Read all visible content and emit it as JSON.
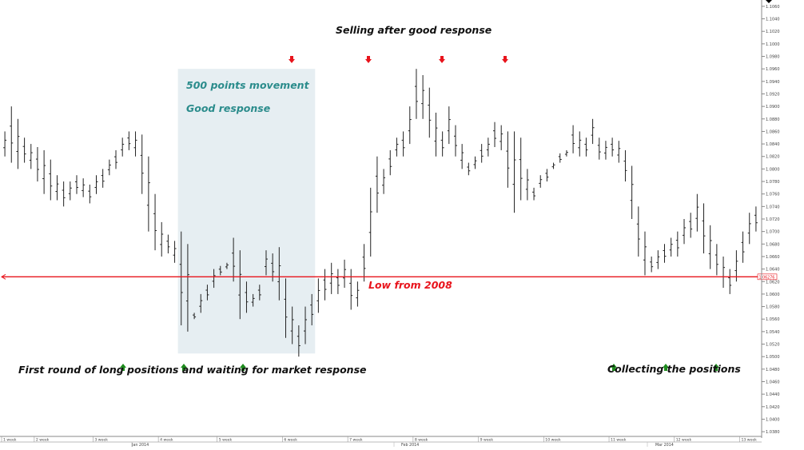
{
  "chart_data": {
    "type": "bar",
    "subtype": "ohlc",
    "instrument_hint": "",
    "title": "",
    "xlabel": "",
    "ylabel": "",
    "ylim": [
      1.0375,
      1.1065
    ],
    "y_ticks": [
      1.038,
      1.04,
      1.042,
      1.044,
      1.046,
      1.048,
      1.05,
      1.052,
      1.054,
      1.056,
      1.058,
      1.06,
      1.062,
      1.064,
      1.066,
      1.068,
      1.07,
      1.072,
      1.074,
      1.076,
      1.078,
      1.08,
      1.082,
      1.084,
      1.086,
      1.088,
      1.09,
      1.092,
      1.094,
      1.096,
      1.098,
      1.1,
      1.102,
      1.104,
      1.106
    ],
    "bar_count": 116,
    "bars_high": [
      1.086,
      1.09,
      1.088,
      1.085,
      1.084,
      1.0835,
      1.083,
      1.0815,
      1.079,
      1.078,
      1.078,
      1.079,
      1.0785,
      1.0775,
      1.079,
      1.08,
      1.0815,
      1.083,
      1.085,
      1.086,
      1.086,
      1.0855,
      1.082,
      1.076,
      1.0715,
      1.0695,
      1.0685,
      1.07,
      1.068,
      1.057,
      1.06,
      1.0615,
      1.064,
      1.0645,
      1.065,
      1.069,
      1.067,
      1.062,
      1.06,
      1.0615,
      1.067,
      1.0665,
      1.0675,
      1.0625,
      1.058,
      1.055,
      1.058,
      1.06,
      1.0625,
      1.064,
      1.065,
      1.064,
      1.0655,
      1.064,
      1.062,
      1.068,
      1.077,
      1.082,
      1.08,
      1.083,
      1.085,
      1.086,
      1.09,
      1.096,
      1.095,
      1.093,
      1.089,
      1.086,
      1.09,
      1.087,
      1.084,
      1.081,
      1.082,
      1.084,
      1.085,
      1.0875,
      1.087,
      1.086,
      1.086,
      1.085,
      1.08,
      1.077,
      1.079,
      1.08,
      1.081,
      1.0825,
      1.083,
      1.087,
      1.086,
      1.085,
      1.088,
      1.085,
      1.0845,
      1.085,
      1.0845,
      1.083,
      1.0805,
      1.074,
      1.07,
      1.066,
      1.067,
      1.068,
      1.069,
      1.07,
      1.072,
      1.073,
      1.076,
      1.0745,
      1.071,
      1.068,
      1.066,
      1.064,
      1.067,
      1.07,
      1.073,
      1.074
    ],
    "bars_low": [
      1.082,
      1.081,
      1.08,
      1.081,
      1.08,
      1.078,
      1.076,
      1.075,
      1.075,
      1.074,
      1.075,
      1.076,
      1.0755,
      1.0745,
      1.076,
      1.077,
      1.079,
      1.08,
      1.082,
      1.083,
      1.082,
      1.076,
      1.07,
      1.067,
      1.066,
      1.0665,
      1.065,
      1.055,
      1.054,
      1.056,
      1.057,
      1.059,
      1.061,
      1.063,
      1.064,
      1.062,
      1.056,
      1.057,
      1.058,
      1.059,
      1.063,
      1.062,
      1.059,
      1.053,
      1.052,
      1.05,
      1.052,
      1.055,
      1.057,
      1.059,
      1.06,
      1.06,
      1.061,
      1.0575,
      1.058,
      1.062,
      1.066,
      1.073,
      1.076,
      1.079,
      1.082,
      1.082,
      1.084,
      1.088,
      1.088,
      1.085,
      1.082,
      1.082,
      1.084,
      1.082,
      1.08,
      1.079,
      1.08,
      1.081,
      1.082,
      1.0835,
      1.083,
      1.077,
      1.073,
      1.075,
      1.075,
      1.075,
      1.077,
      1.078,
      1.08,
      1.081,
      1.082,
      1.0825,
      1.082,
      1.082,
      1.084,
      1.0815,
      1.0815,
      1.082,
      1.081,
      1.078,
      1.072,
      1.066,
      1.063,
      1.0635,
      1.064,
      1.065,
      1.066,
      1.066,
      1.068,
      1.069,
      1.07,
      1.0665,
      1.064,
      1.063,
      1.061,
      1.06,
      1.062,
      1.065,
      1.068,
      1.07
    ],
    "reference_line": {
      "value": 1.06276,
      "label": "1.06276",
      "color": "#e8141c"
    },
    "highlight_region": {
      "from_bar": 27,
      "to_bar": 47,
      "color": "#e6eef2"
    },
    "sell_signals_at_bar": [
      44,
      56,
      68,
      78
    ],
    "buy_signals_at_bar": [
      19,
      28,
      37,
      95,
      104,
      111
    ],
    "x_tick_labels": [
      "1 week",
      "2 week",
      "3 week",
      "4 week",
      "5 week",
      "6 week",
      "7 week",
      "8 week",
      "9 week",
      "10 week",
      "11 week",
      "12 week",
      "13 week"
    ],
    "month_labels": [
      "Jan 2014",
      "Feb 2014",
      "Mar 2014"
    ],
    "annotations": {
      "selling": "Selling after good response",
      "points": "500 points movement",
      "good_response": "Good response",
      "low_2008": "Low from 2008",
      "first_round": "First round of long positions and waiting for market response",
      "collecting": "Collecting the positions"
    },
    "colors": {
      "bars": "#222222",
      "sell_arrow": "#e8141c",
      "buy_arrow": "#1e8c1e",
      "teal_text": "#2b8c8c",
      "grid": "#d8d8d8"
    }
  }
}
